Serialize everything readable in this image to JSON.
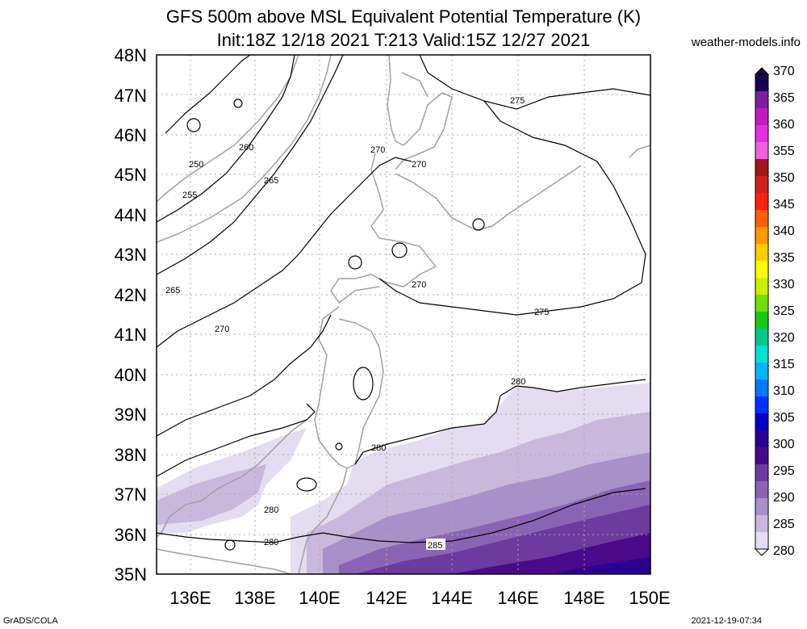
{
  "title": {
    "line1": "GFS 500m above MSL Equivalent Potential Temperature (K)",
    "line2": "Init:18Z 12/18 2021 T:213 Valid:15Z 12/27 2021"
  },
  "site": "weather-models.info",
  "footer": {
    "left": "GrADS/COLA",
    "right": "2021-12-19-07:34"
  },
  "map": {
    "lon_range": [
      135,
      150
    ],
    "lat_range": [
      35,
      48
    ],
    "lat_labels": [
      "48N",
      "47N",
      "46N",
      "45N",
      "44N",
      "43N",
      "42N",
      "41N",
      "40N",
      "39N",
      "38N",
      "37N",
      "36N",
      "35N"
    ],
    "lon_labels": [
      "136E",
      "138E",
      "140E",
      "142E",
      "144E",
      "146E",
      "148E",
      "150E"
    ],
    "contour_labels": [
      "275",
      "270",
      "270",
      "260",
      "250",
      "265",
      "255",
      "265",
      "270",
      "270",
      "275",
      "280",
      "280",
      "280",
      "280",
      "285"
    ]
  },
  "colorbar": {
    "labels": [
      "370",
      "365",
      "360",
      "355",
      "350",
      "345",
      "340",
      "335",
      "330",
      "325",
      "320",
      "315",
      "310",
      "305",
      "300",
      "295",
      "290",
      "285",
      "280"
    ],
    "colors": [
      "#1a0050",
      "#7a1fa0",
      "#c01dc0",
      "#e030e0",
      "#f060e0",
      "#a01818",
      "#d02020",
      "#ff2010",
      "#ff6000",
      "#ff9a00",
      "#ffcc00",
      "#ffff00",
      "#c8f000",
      "#70e000",
      "#18c818",
      "#00c890",
      "#00e0d0",
      "#00b4ff",
      "#0078ff",
      "#0030ff",
      "#0000c0",
      "#2a0090",
      "#4a0a8a",
      "#6d3a9e",
      "#8a64b4",
      "#a890c8",
      "#c8b8dc",
      "#e4dcf0"
    ]
  }
}
